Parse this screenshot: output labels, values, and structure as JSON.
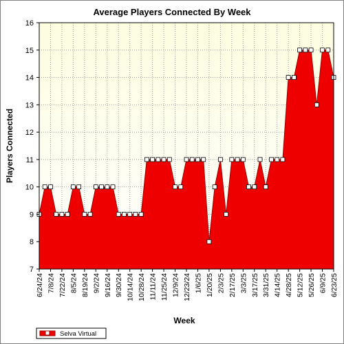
{
  "chart_data": {
    "type": "area",
    "title": "Average Players Connected By Week",
    "xlabel": "Week",
    "ylabel": "Players Connected",
    "ylim": [
      7,
      16
    ],
    "yticks": [
      7,
      8,
      9,
      10,
      11,
      12,
      13,
      14,
      15,
      16
    ],
    "grid": "dotted",
    "legend_position": "bottom-left",
    "colors": {
      "fill": "#ee0000",
      "line": "#990000",
      "plot_bg_top": "#fdfde0",
      "plot_bg_bottom": "#ffffff",
      "marker_fill": "#ffffff"
    },
    "x_tick_labels": [
      "6/24/24",
      "7/8/24",
      "7/22/24",
      "8/5/24",
      "8/19/24",
      "9/2/24",
      "9/16/24",
      "9/30/24",
      "10/14/24",
      "10/28/24",
      "11/11/24",
      "11/25/24",
      "12/9/24",
      "12/23/24",
      "1/6/25",
      "1/20/25",
      "2/3/25",
      "2/17/25",
      "3/3/25",
      "3/17/25",
      "3/31/25",
      "4/14/25",
      "4/28/25",
      "5/12/25",
      "5/26/25",
      "6/9/25",
      "6/23/25"
    ],
    "series": [
      {
        "name": "Selva Virtual",
        "x": [
          "6/24/24",
          "7/1/24",
          "7/8/24",
          "7/15/24",
          "7/22/24",
          "7/29/24",
          "8/5/24",
          "8/12/24",
          "8/19/24",
          "8/26/24",
          "9/2/24",
          "9/9/24",
          "9/16/24",
          "9/23/24",
          "9/30/24",
          "10/7/24",
          "10/14/24",
          "10/21/24",
          "10/28/24",
          "11/4/24",
          "11/11/24",
          "11/18/24",
          "11/25/24",
          "12/2/24",
          "12/9/24",
          "12/16/24",
          "12/23/24",
          "12/30/24",
          "1/6/25",
          "1/13/25",
          "1/20/25",
          "1/27/25",
          "2/3/25",
          "2/10/25",
          "2/17/25",
          "2/24/25",
          "3/3/25",
          "3/10/25",
          "3/17/25",
          "3/24/25",
          "3/31/25",
          "4/7/25",
          "4/14/25",
          "4/21/25",
          "4/28/25",
          "5/5/25",
          "5/12/25",
          "5/19/25",
          "5/26/25",
          "6/2/25",
          "6/9/25",
          "6/16/25",
          "6/23/25"
        ],
        "values": [
          9,
          10,
          10,
          9,
          9,
          9,
          10,
          10,
          9,
          9,
          10,
          10,
          10,
          10,
          9,
          9,
          9,
          9,
          9,
          11,
          11,
          11,
          11,
          11,
          10,
          10,
          11,
          11,
          11,
          11,
          8,
          10,
          11,
          9,
          11,
          11,
          11,
          10,
          10,
          11,
          10,
          11,
          11,
          11,
          14,
          14,
          15,
          15,
          15,
          13,
          15,
          15,
          14
        ]
      }
    ]
  }
}
